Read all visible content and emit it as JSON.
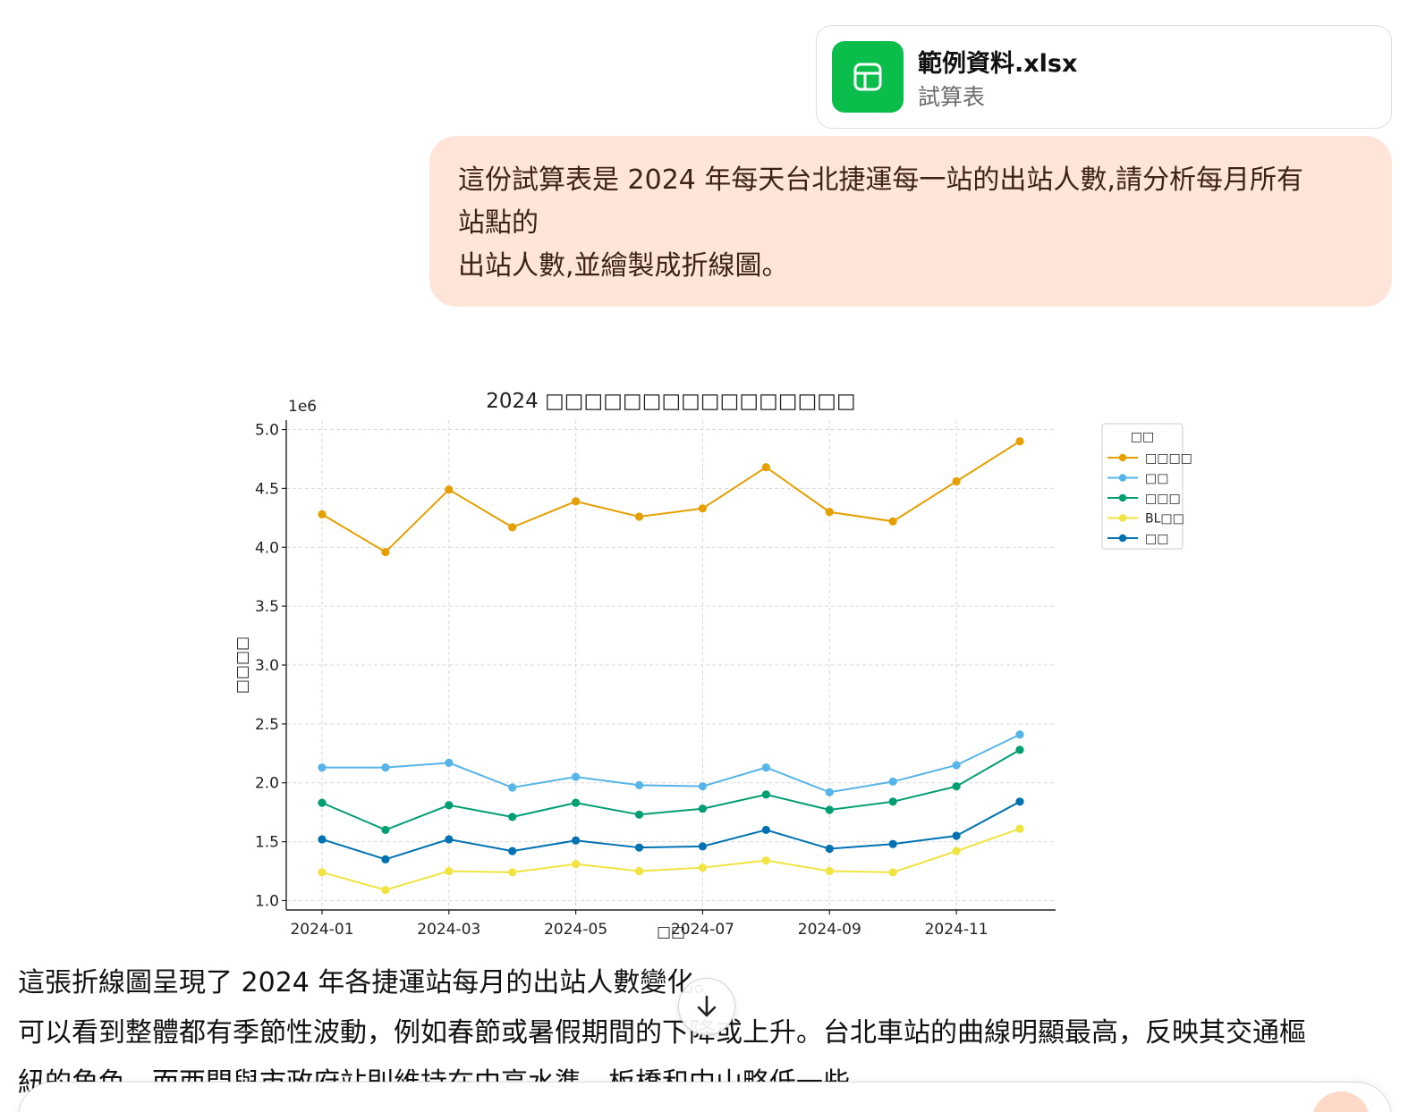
{
  "attachment": {
    "file_name": "範例資料.xlsx",
    "file_type": "試算表",
    "icon": "table-icon",
    "icon_color": "#0bbd4b"
  },
  "user_message": {
    "lines": [
      "這份試算表是 2024 年每天台北捷運每一站的出站人數,請分析每月所有",
      "站點的",
      "出站人數,並繪製成折線圖。"
    ],
    "bubble_color": "#ffe5d9"
  },
  "assistant_reply": {
    "lines": [
      "這張折線圖呈現了 2024 年各捷運站每月的出站人數變化。",
      "可以看到整體都有季節性波動，例如春節或暑假期間的下降或上升。台北車站的曲線明顯最高，反映其交通樞",
      "紐的角色，而西門與市政府站則維持在中高水準，板橋和中山略低一些。"
    ]
  },
  "controls": {
    "scroll_down_icon": "arrow-down-icon"
  },
  "chart_data": {
    "type": "line",
    "title": "2024 □□□□□□□□□□□□□□□□",
    "xlabel": "□□",
    "ylabel": "□□□□",
    "y_multiplier_label": "1e6",
    "categories": [
      "2024-01",
      "2024-02",
      "2024-03",
      "2024-04",
      "2024-05",
      "2024-06",
      "2024-07",
      "2024-08",
      "2024-09",
      "2024-10",
      "2024-11",
      "2024-12"
    ],
    "x_tick_labels": [
      "2024-01",
      "2024-03",
      "2024-05",
      "2024-07",
      "2024-09",
      "2024-11"
    ],
    "y_ticks": [
      "1.0",
      "1.5",
      "2.0",
      "2.5",
      "3.0",
      "3.5",
      "4.0",
      "4.5",
      "5.0"
    ],
    "ylim": [
      0.92,
      5.08
    ],
    "grid": true,
    "legend_title": "□□",
    "legend_position": "right outside",
    "series": [
      {
        "name": "□□□□",
        "color": "#e69f00",
        "values": [
          4.28,
          3.96,
          4.49,
          4.17,
          4.39,
          4.26,
          4.33,
          4.68,
          4.3,
          4.22,
          4.56,
          4.9
        ]
      },
      {
        "name": "□□",
        "color": "#56b4e9",
        "values": [
          2.13,
          2.13,
          2.17,
          1.96,
          2.05,
          1.98,
          1.97,
          2.13,
          1.92,
          2.01,
          2.15,
          2.41
        ]
      },
      {
        "name": "□□□",
        "color": "#009e73",
        "values": [
          1.83,
          1.6,
          1.81,
          1.71,
          1.83,
          1.73,
          1.78,
          1.9,
          1.77,
          1.84,
          1.97,
          2.28
        ]
      },
      {
        "name": "BL□□",
        "color": "#f0e442",
        "values": [
          1.24,
          1.09,
          1.25,
          1.24,
          1.31,
          1.25,
          1.28,
          1.34,
          1.25,
          1.24,
          1.42,
          1.61
        ]
      },
      {
        "name": "□□",
        "color": "#0072b2",
        "values": [
          1.52,
          1.35,
          1.52,
          1.42,
          1.51,
          1.45,
          1.46,
          1.6,
          1.44,
          1.48,
          1.55,
          1.84
        ]
      }
    ]
  }
}
